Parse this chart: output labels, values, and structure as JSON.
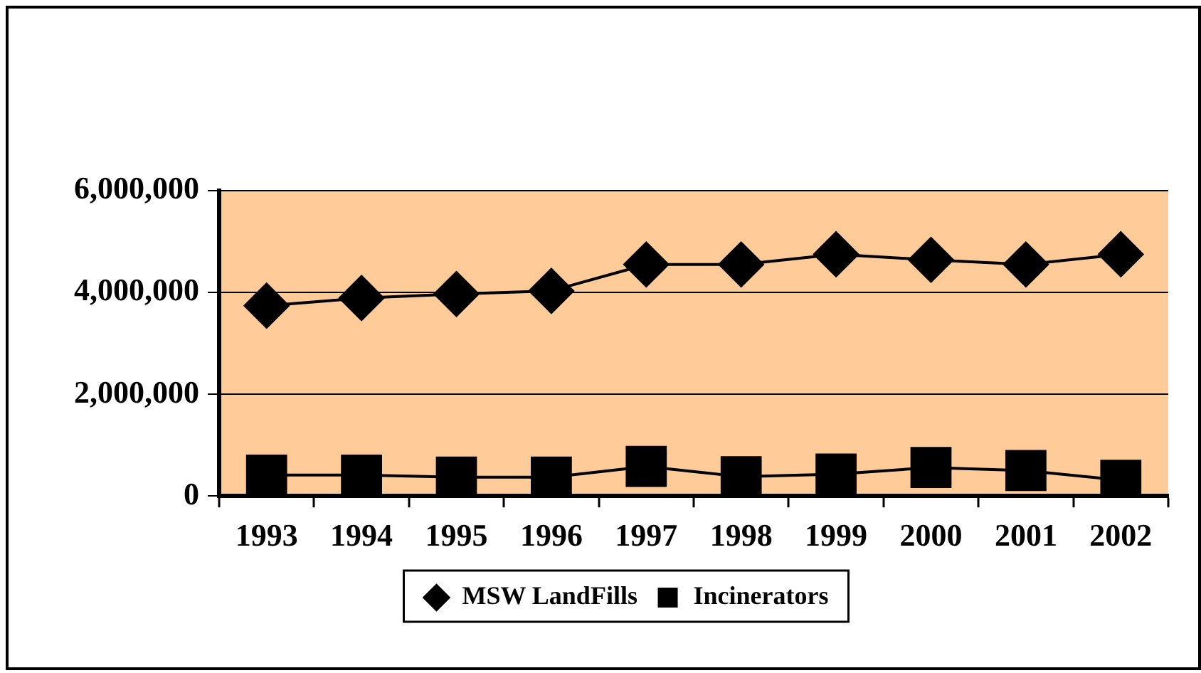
{
  "chart_data": {
    "type": "line",
    "categories": [
      "1993",
      "1994",
      "1995",
      "1996",
      "1997",
      "1998",
      "1999",
      "2000",
      "2001",
      "2002"
    ],
    "series": [
      {
        "name": "MSW LandFills",
        "color": "#000000",
        "marker": "diamond",
        "values": [
          3740000,
          3890000,
          3970000,
          4030000,
          4550000,
          4550000,
          4750000,
          4640000,
          4550000,
          4750000
        ]
      },
      {
        "name": "Incinerators",
        "color": "#000000",
        "marker": "square",
        "values": [
          410000,
          410000,
          370000,
          370000,
          580000,
          380000,
          430000,
          560000,
          500000,
          310000
        ]
      }
    ],
    "ylim": [
      0,
      6000000
    ],
    "yticks": [
      {
        "value": 0,
        "label": "0"
      },
      {
        "value": 2000000,
        "label": "2,000,000"
      },
      {
        "value": 4000000,
        "label": "4,000,000"
      },
      {
        "value": 6000000,
        "label": "6,000,000"
      }
    ],
    "grid": "y",
    "legend": "bottom",
    "line_style": "solid"
  }
}
